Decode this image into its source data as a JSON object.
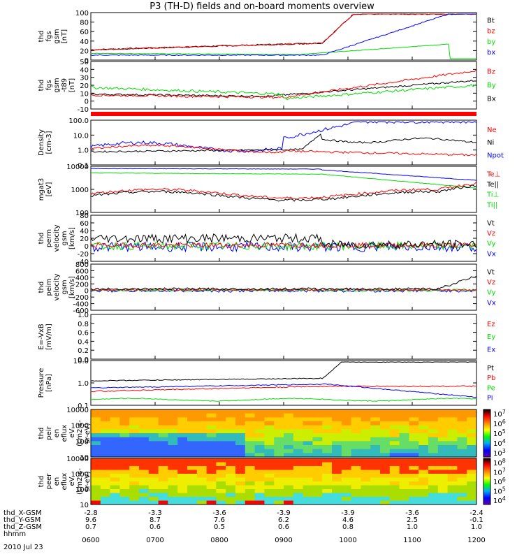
{
  "title": "P3 (TH-D) fields and on-board moments overview",
  "date": "2010 Jul 23",
  "colors": {
    "black": "#000000",
    "red": "#ff0000",
    "green": "#00dd00",
    "blue": "#0000ff",
    "orange": "#ff9900"
  },
  "chart_data": [
    {
      "type": "line",
      "ylabel": [
        "thd",
        "fgs",
        "gsm",
        "[nT]"
      ],
      "yticks": [
        "100",
        "80",
        "60",
        "40",
        "20",
        "0"
      ],
      "ylim": [
        0,
        100
      ],
      "legend": [
        {
          "label": "Bt",
          "color": "black"
        },
        {
          "label": "bz",
          "color": "red"
        },
        {
          "label": "by",
          "color": "green"
        },
        {
          "label": "bx",
          "color": "blue"
        }
      ]
    },
    {
      "type": "line",
      "ylabel": [
        "thd",
        "fgs",
        "gsm",
        "-t89",
        "[nT]"
      ],
      "yticks": [
        "50",
        "40",
        "30",
        "20",
        "10",
        "0",
        "-10"
      ],
      "ylim": [
        -20,
        50
      ],
      "legend": [
        {
          "label": "Bz",
          "color": "red"
        },
        {
          "label": "By",
          "color": "green"
        },
        {
          "label": "Bx",
          "color": "black"
        }
      ]
    },
    {
      "type": "line",
      "ylabel": [
        "Density",
        "[cm-3]"
      ],
      "yticks": [
        "100.0",
        "10.0",
        "1.0",
        "0.1"
      ],
      "log": true,
      "legend": [
        {
          "label": "Ne",
          "color": "red"
        },
        {
          "label": "Ni",
          "color": "black"
        },
        {
          "label": "Npot",
          "color": "blue"
        }
      ]
    },
    {
      "type": "line",
      "ylabel": [
        "mgat3",
        "[eV]"
      ],
      "yticks": [
        "10000",
        "1000",
        "100"
      ],
      "log": true,
      "legend": [
        {
          "label": "Te⊥",
          "color": "red"
        },
        {
          "label": "Te||",
          "color": "black"
        },
        {
          "label": "Ti⊥",
          "color": "green"
        },
        {
          "label": "Ti||",
          "color": "green"
        }
      ]
    },
    {
      "type": "line",
      "ylabel": [
        "thd",
        "perm",
        "velocity",
        "gsm",
        "[km/s]"
      ],
      "yticks": [
        "80",
        "60",
        "40",
        "20",
        "0",
        "-20",
        "-40"
      ],
      "ylim": [
        -40,
        80
      ],
      "legend": [
        {
          "label": "Vt",
          "color": "black"
        },
        {
          "label": "Vz",
          "color": "red"
        },
        {
          "label": "Vy",
          "color": "green"
        },
        {
          "label": "Vx",
          "color": "blue"
        }
      ]
    },
    {
      "type": "line",
      "ylabel": [
        "thd",
        "peim",
        "velocity",
        "gsm",
        "[km/s]"
      ],
      "yticks": [
        "800",
        "600",
        "400",
        "200",
        "0",
        "-200",
        "-400",
        "-600"
      ],
      "ylim": [
        -600,
        800
      ],
      "legend": [
        {
          "label": "Vt",
          "color": "black"
        },
        {
          "label": "Vz",
          "color": "red"
        },
        {
          "label": "Vy",
          "color": "green"
        },
        {
          "label": "Vx",
          "color": "blue"
        }
      ]
    },
    {
      "type": "line",
      "ylabel": [
        "E=-VxB",
        "[mV/m]"
      ],
      "yticks": [
        "1.0",
        "0.8",
        "0.6",
        "0.4",
        "0.2",
        "0.0"
      ],
      "ylim": [
        0,
        1
      ],
      "legend": [
        {
          "label": "Ez",
          "color": "red"
        },
        {
          "label": "Ey",
          "color": "green"
        },
        {
          "label": "Ex",
          "color": "blue"
        }
      ]
    },
    {
      "type": "line",
      "ylabel": [
        "Pressure",
        "[nPa]"
      ],
      "yticks": [
        "10.0",
        "1.0",
        "0.1"
      ],
      "log": true,
      "legend": [
        {
          "label": "Pt",
          "color": "black"
        },
        {
          "label": "Pb",
          "color": "red"
        },
        {
          "label": "Pe",
          "color": "green"
        },
        {
          "label": "Pi",
          "color": "blue"
        }
      ]
    },
    {
      "type": "heatmap",
      "ylabel": [
        "thd",
        "peir",
        "en",
        "eflux",
        "eV",
        "(cm2-s-",
        "sr-eV)"
      ],
      "yticks": [
        "10000",
        "1000",
        "100",
        "10"
      ],
      "log": true,
      "colorbar": [
        "10^3",
        "10^4",
        "10^5",
        "10^6",
        "10^7"
      ]
    },
    {
      "type": "heatmap",
      "ylabel": [
        "thd",
        "peer",
        "en",
        "eflux",
        "eV",
        "(cm2-s-",
        "sr-eV)"
      ],
      "yticks": [
        "10000",
        "1000",
        "100",
        "10"
      ],
      "log": true,
      "colorbar": [
        "10^4",
        "10^5",
        "10^6",
        "10^7",
        "10^8"
      ]
    }
  ],
  "xaxis": {
    "hhmm": [
      "0600",
      "0700",
      "0800",
      "0900",
      "1000",
      "1100",
      "1200"
    ],
    "rows": [
      {
        "label": "thd_X-GSM",
        "values": [
          "-2.8",
          "-3.3",
          "-3.6",
          "-3.9",
          "-3.9",
          "-3.6",
          "-2.4"
        ]
      },
      {
        "label": "thd_Y-GSM",
        "values": [
          "9.6",
          "8.7",
          "7.6",
          "6.2",
          "4.6",
          "2.5",
          "-0.1"
        ]
      },
      {
        "label": "thd_Z-GSM",
        "values": [
          "0.7",
          "0.6",
          "0.5",
          "0.6",
          "0.8",
          "1.0",
          "1.0"
        ]
      },
      {
        "label": "hhmm",
        "values": []
      }
    ]
  }
}
